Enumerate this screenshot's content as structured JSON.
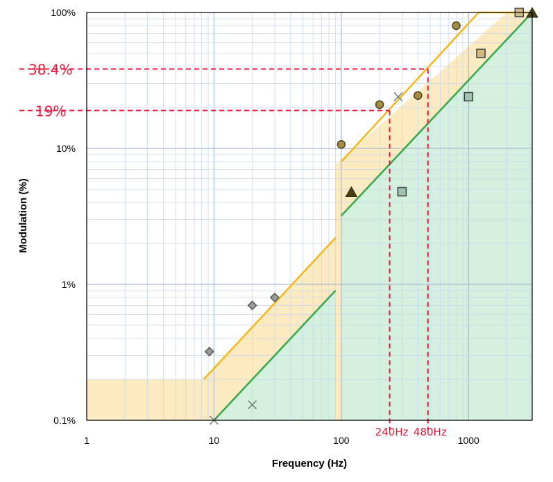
{
  "chart_data": {
    "type": "scatter",
    "title": "",
    "xlabel": "Frequency (Hz)",
    "ylabel": "Modulation  (%)",
    "xscale": "log",
    "yscale": "log",
    "xlim": [
      1,
      3162
    ],
    "ylim": [
      0.1,
      100
    ],
    "grid": true,
    "x_ticks": [
      {
        "value": 1,
        "label": "1"
      },
      {
        "value": 10,
        "label": "10"
      },
      {
        "value": 100,
        "label": "100"
      },
      {
        "value": 1000,
        "label": "1000"
      }
    ],
    "y_ticks": [
      {
        "value": 0.1,
        "label": "0.1%"
      },
      {
        "value": 1,
        "label": "1%"
      },
      {
        "value": 10,
        "label": "10%"
      },
      {
        "value": 100,
        "label": "100%"
      }
    ],
    "regions": [
      {
        "kind": "low-risk",
        "fill": "#fcebc0",
        "polygon": [
          [
            1,
            0.2
          ],
          [
            8.3,
            0.2
          ],
          [
            90,
            2.2
          ],
          [
            90,
            0.1
          ],
          [
            1,
            0.1
          ]
        ]
      },
      {
        "kind": "low-risk",
        "fill": "#fcebc0",
        "polygon": [
          [
            90,
            7.6
          ],
          [
            2000,
            100
          ],
          [
            3162,
            100
          ],
          [
            3162,
            0.1
          ],
          [
            90,
            0.1
          ]
        ]
      },
      {
        "kind": "no-effect",
        "fill": "#d4f0de",
        "polygon": [
          [
            10,
            0.1
          ],
          [
            90,
            0.9
          ],
          [
            90,
            0.1
          ]
        ]
      },
      {
        "kind": "no-effect",
        "fill": "#d4f0de",
        "polygon": [
          [
            100,
            3.2
          ],
          [
            3162,
            100
          ],
          [
            3162,
            0.1
          ],
          [
            100,
            0.1
          ]
        ]
      }
    ],
    "lines": [
      {
        "name": "",
        "color": "#f6b820",
        "points": [
          [
            8.3,
            0.2
          ],
          [
            90,
            2.2
          ]
        ]
      },
      {
        "name": "",
        "color": "#f6b820",
        "points": [
          [
            100,
            8
          ],
          [
            1200,
            100
          ],
          [
            3162,
            100
          ]
        ]
      },
      {
        "name": "",
        "color": "#3aa84c",
        "points": [
          [
            10,
            0.1
          ],
          [
            90,
            0.9
          ]
        ]
      },
      {
        "name": "",
        "color": "#3aa84c",
        "points": [
          [
            100,
            3.2
          ],
          [
            3162,
            100
          ]
        ]
      }
    ],
    "series": [
      {
        "marker": "diamond",
        "points": [
          [
            9.2,
            0.32
          ],
          [
            20,
            0.7
          ],
          [
            30,
            0.8
          ]
        ]
      },
      {
        "marker": "circle",
        "points": [
          [
            100,
            10.7
          ],
          [
            200,
            21
          ],
          [
            400,
            24.5
          ],
          [
            800,
            80
          ]
        ]
      },
      {
        "marker": "square",
        "points": [
          [
            300,
            4.8
          ],
          [
            1000,
            24
          ],
          [
            1250,
            50
          ],
          [
            2500,
            100
          ]
        ]
      },
      {
        "marker": "triangle",
        "points": [
          [
            120,
            4.8
          ],
          [
            3162,
            100
          ]
        ]
      },
      {
        "marker": "cross",
        "points": [
          [
            10,
            0.1
          ],
          [
            20,
            0.13
          ],
          [
            280,
            24
          ]
        ]
      }
    ],
    "annotations": [
      {
        "label": "38.4%",
        "y": 38.4,
        "x": 480
      },
      {
        "label": "19%",
        "y": 19,
        "x": 240
      },
      {
        "label": "240Hz",
        "x": 240,
        "y": 19
      },
      {
        "label": "480Hz",
        "x": 480,
        "y": 38.4
      }
    ],
    "colors": {
      "grid_major": "#a9bad3",
      "grid_minor": "#c7d8ee",
      "frame": "#000000",
      "annotation": "#e8173a"
    }
  }
}
